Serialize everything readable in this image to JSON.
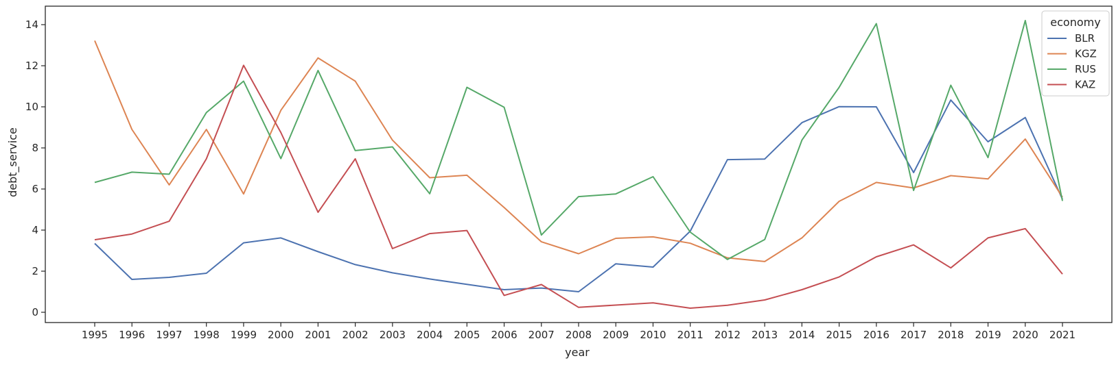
{
  "chart_data": {
    "type": "line",
    "title": "",
    "xlabel": "year",
    "ylabel": "debt_service",
    "x": [
      1995,
      1996,
      1997,
      1998,
      1999,
      2000,
      2001,
      2002,
      2003,
      2004,
      2005,
      2006,
      2007,
      2008,
      2009,
      2010,
      2011,
      2012,
      2013,
      2014,
      2015,
      2016,
      2017,
      2018,
      2019,
      2020,
      2021
    ],
    "ylim": [
      -0.5,
      14.9
    ],
    "yticks": [
      0,
      2,
      4,
      6,
      8,
      10,
      12,
      14
    ],
    "grid": false,
    "legend": {
      "title": "economy",
      "placement": "top-right"
    },
    "series": [
      {
        "name": "BLR",
        "color": "#4c72b0",
        "values": [
          3.35,
          1.6,
          1.7,
          1.9,
          3.38,
          3.62,
          2.95,
          2.32,
          1.92,
          1.62,
          1.36,
          1.1,
          1.18,
          1.0,
          2.36,
          2.2,
          3.95,
          7.43,
          7.46,
          9.23,
          10.01,
          10.0,
          6.8,
          10.33,
          8.3,
          9.48,
          5.5
        ]
      },
      {
        "name": "KGZ",
        "color": "#dd8452",
        "values": [
          13.22,
          8.9,
          6.2,
          8.9,
          5.76,
          9.83,
          12.38,
          11.25,
          8.38,
          6.55,
          6.67,
          5.1,
          3.43,
          2.85,
          3.6,
          3.67,
          3.36,
          2.65,
          2.47,
          3.62,
          5.4,
          6.32,
          6.05,
          6.65,
          6.49,
          8.43,
          5.6
        ]
      },
      {
        "name": "RUS",
        "color": "#55a868",
        "values": [
          6.32,
          6.82,
          6.72,
          9.72,
          11.25,
          7.48,
          11.77,
          7.87,
          8.05,
          5.77,
          10.95,
          9.98,
          3.76,
          5.63,
          5.76,
          6.6,
          3.9,
          2.57,
          3.54,
          8.38,
          10.95,
          14.05,
          5.93,
          11.05,
          7.53,
          14.2,
          5.42
        ]
      },
      {
        "name": "KAZ",
        "color": "#c44e52",
        "values": [
          3.53,
          3.81,
          4.43,
          7.47,
          12.02,
          8.75,
          4.87,
          7.47,
          3.1,
          3.83,
          3.98,
          0.82,
          1.35,
          0.24,
          0.35,
          0.46,
          0.2,
          0.34,
          0.6,
          1.1,
          1.72,
          2.7,
          3.28,
          2.16,
          3.62,
          4.07,
          1.86
        ]
      }
    ]
  }
}
